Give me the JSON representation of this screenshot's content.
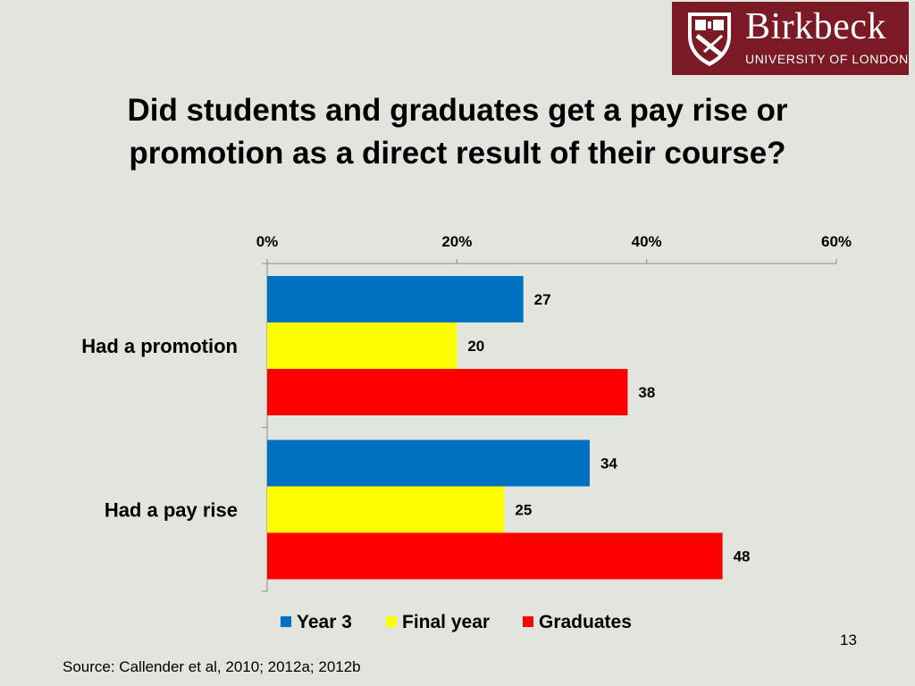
{
  "logo": {
    "name": "Birkbeck",
    "subtitle": "UNIVERSITY OF LONDON",
    "color": "#7b1a24"
  },
  "title": {
    "line1": "Did students and graduates get a pay rise or",
    "line2": "promotion as a direct result of their course?"
  },
  "chart_data": {
    "type": "bar",
    "orientation": "horizontal",
    "categories": [
      "Had a promotion",
      "Had a pay rise"
    ],
    "series": [
      {
        "name": "Year 3",
        "color": "#0070c0",
        "values": [
          27,
          34
        ]
      },
      {
        "name": "Final year",
        "color": "#ffff00",
        "values": [
          20,
          25
        ]
      },
      {
        "name": "Graduates",
        "color": "#ff0000",
        "values": [
          38,
          48
        ]
      }
    ],
    "xlim": [
      0,
      60
    ],
    "x_ticks": [
      "0%",
      "20%",
      "40%",
      "60%"
    ],
    "x_axis_position": "top",
    "legend_position": "bottom",
    "grid": false
  },
  "footer": {
    "source": "Source: Callender et al, 2010; 2012a; 2012b",
    "slide_number": "13"
  }
}
